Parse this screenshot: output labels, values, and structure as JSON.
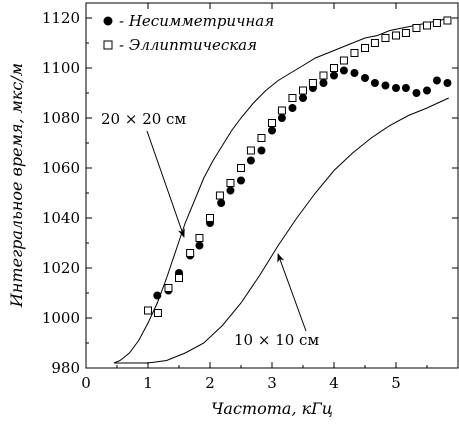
{
  "chart_data": {
    "type": "scatter",
    "xlabel": "Частота, кГц",
    "ylabel": "Интегральное время, мкс/м",
    "xlim": [
      0,
      5.9
    ],
    "ylim": [
      980,
      1125
    ],
    "x_ticks": [
      0,
      1,
      2,
      3,
      4,
      5
    ],
    "y_ticks": [
      980,
      1000,
      1020,
      1040,
      1060,
      1080,
      1100,
      1120
    ],
    "grid": false,
    "legend_position": "top-left",
    "series": [
      {
        "name": "Несимметричная",
        "marker": "filled-circle",
        "x": [
          1.15,
          1.33,
          1.5,
          1.68,
          1.83,
          2.0,
          2.18,
          2.33,
          2.5,
          2.66,
          2.83,
          3.0,
          3.16,
          3.33,
          3.5,
          3.66,
          3.83,
          4.0,
          4.16,
          4.33,
          4.5,
          4.66,
          4.83,
          5.0,
          5.16,
          5.33,
          5.5,
          5.66,
          5.83
        ],
        "y": [
          1009,
          1011,
          1018,
          1025,
          1029,
          1038,
          1046,
          1051,
          1055,
          1063,
          1067,
          1075,
          1080,
          1084,
          1088,
          1092,
          1094,
          1097,
          1099,
          1098,
          1096,
          1094,
          1093,
          1092,
          1092,
          1090,
          1091,
          1095,
          1094
        ]
      },
      {
        "name": "Эллиптическая",
        "marker": "open-square",
        "x": [
          1.0,
          1.16,
          1.33,
          1.5,
          1.68,
          1.83,
          2.0,
          2.16,
          2.33,
          2.5,
          2.66,
          2.83,
          3.0,
          3.16,
          3.33,
          3.5,
          3.66,
          3.83,
          4.0,
          4.16,
          4.33,
          4.5,
          4.66,
          4.83,
          5.0,
          5.16,
          5.33,
          5.5,
          5.66,
          5.83
        ],
        "y": [
          1003,
          1002,
          1012,
          1016,
          1026,
          1032,
          1040,
          1049,
          1054,
          1060,
          1067,
          1072,
          1078,
          1083,
          1088,
          1091,
          1094,
          1097,
          1100,
          1103,
          1106,
          1108,
          1110,
          1112,
          1113,
          1114,
          1116,
          1117,
          1118,
          1119
        ]
      }
    ],
    "curves": [
      {
        "label": "20 × 20 см",
        "x": [
          0.45,
          0.55,
          0.7,
          0.85,
          1.0,
          1.15,
          1.3,
          1.45,
          1.6,
          1.75,
          1.9,
          2.05,
          2.2,
          2.35,
          2.5,
          2.7,
          2.9,
          3.1,
          3.3,
          3.5,
          3.7,
          3.9,
          4.1,
          4.3,
          4.5,
          4.7,
          4.9,
          5.1,
          5.3,
          5.5,
          5.7,
          5.85
        ],
        "y": [
          982,
          983,
          986,
          991,
          998,
          1006,
          1016,
          1027,
          1038,
          1047,
          1056,
          1063,
          1069,
          1075,
          1080,
          1086,
          1091,
          1095,
          1098,
          1101,
          1104,
          1106,
          1108,
          1110,
          1112,
          1113,
          1115,
          1116,
          1117,
          1118,
          1119,
          1120
        ]
      },
      {
        "label": "10 × 10 см",
        "x": [
          0.45,
          0.7,
          1.0,
          1.3,
          1.6,
          1.9,
          2.2,
          2.5,
          2.8,
          3.1,
          3.4,
          3.7,
          4.0,
          4.3,
          4.6,
          4.9,
          5.2,
          5.5,
          5.85
        ],
        "y": [
          982,
          982,
          982,
          983,
          986,
          990,
          997,
          1006,
          1017,
          1029,
          1040,
          1050,
          1059,
          1066,
          1072,
          1077,
          1081,
          1084,
          1088
        ]
      }
    ],
    "annotations": [
      {
        "text": "20 × 20 см"
      },
      {
        "text": "10 × 10 см"
      }
    ]
  }
}
